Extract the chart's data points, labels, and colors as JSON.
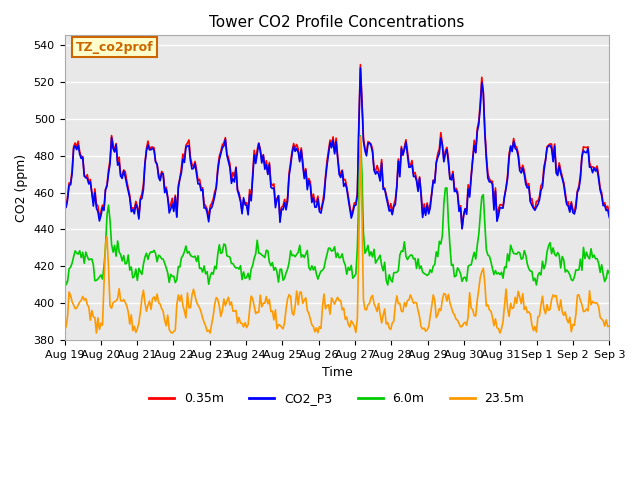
{
  "title": "Tower CO2 Profile Concentrations",
  "xlabel": "Time",
  "ylabel": "CO2 (ppm)",
  "ylim": [
    380,
    545
  ],
  "yticks": [
    380,
    400,
    420,
    440,
    460,
    480,
    500,
    520,
    540
  ],
  "annotation_text": "TZ_co2prof",
  "annotation_color": "#cc6600",
  "annotation_bg": "#ffffcc",
  "bg_color": "#e8e8e8",
  "fig_bg": "#ffffff",
  "series": {
    "0.35m": {
      "color": "#ff0000",
      "linewidth": 1.2
    },
    "CO2_P3": {
      "color": "#0000ff",
      "linewidth": 1.2
    },
    "6.0m": {
      "color": "#00cc00",
      "linewidth": 1.2
    },
    "23.5m": {
      "color": "#ff9900",
      "linewidth": 1.2
    }
  },
  "n_points": 360,
  "xtick_positions": [
    0,
    1,
    2,
    3,
    4,
    5,
    6,
    7,
    8,
    9,
    10,
    11,
    12,
    13,
    14,
    15
  ],
  "xtick_labels": [
    "Aug 19",
    "Aug 20",
    "Aug 21",
    "Aug 22",
    "Aug 23",
    "Aug 24",
    "Aug 25",
    "Aug 26",
    "Aug 27",
    "Aug 28",
    "Aug 29",
    "Aug 30",
    "Aug 31",
    "Sep 1",
    "Sep 2",
    "Sep 3"
  ],
  "xlim": [
    0,
    15
  ],
  "grid_color": "#ffffff",
  "grid_linewidth": 1.0
}
